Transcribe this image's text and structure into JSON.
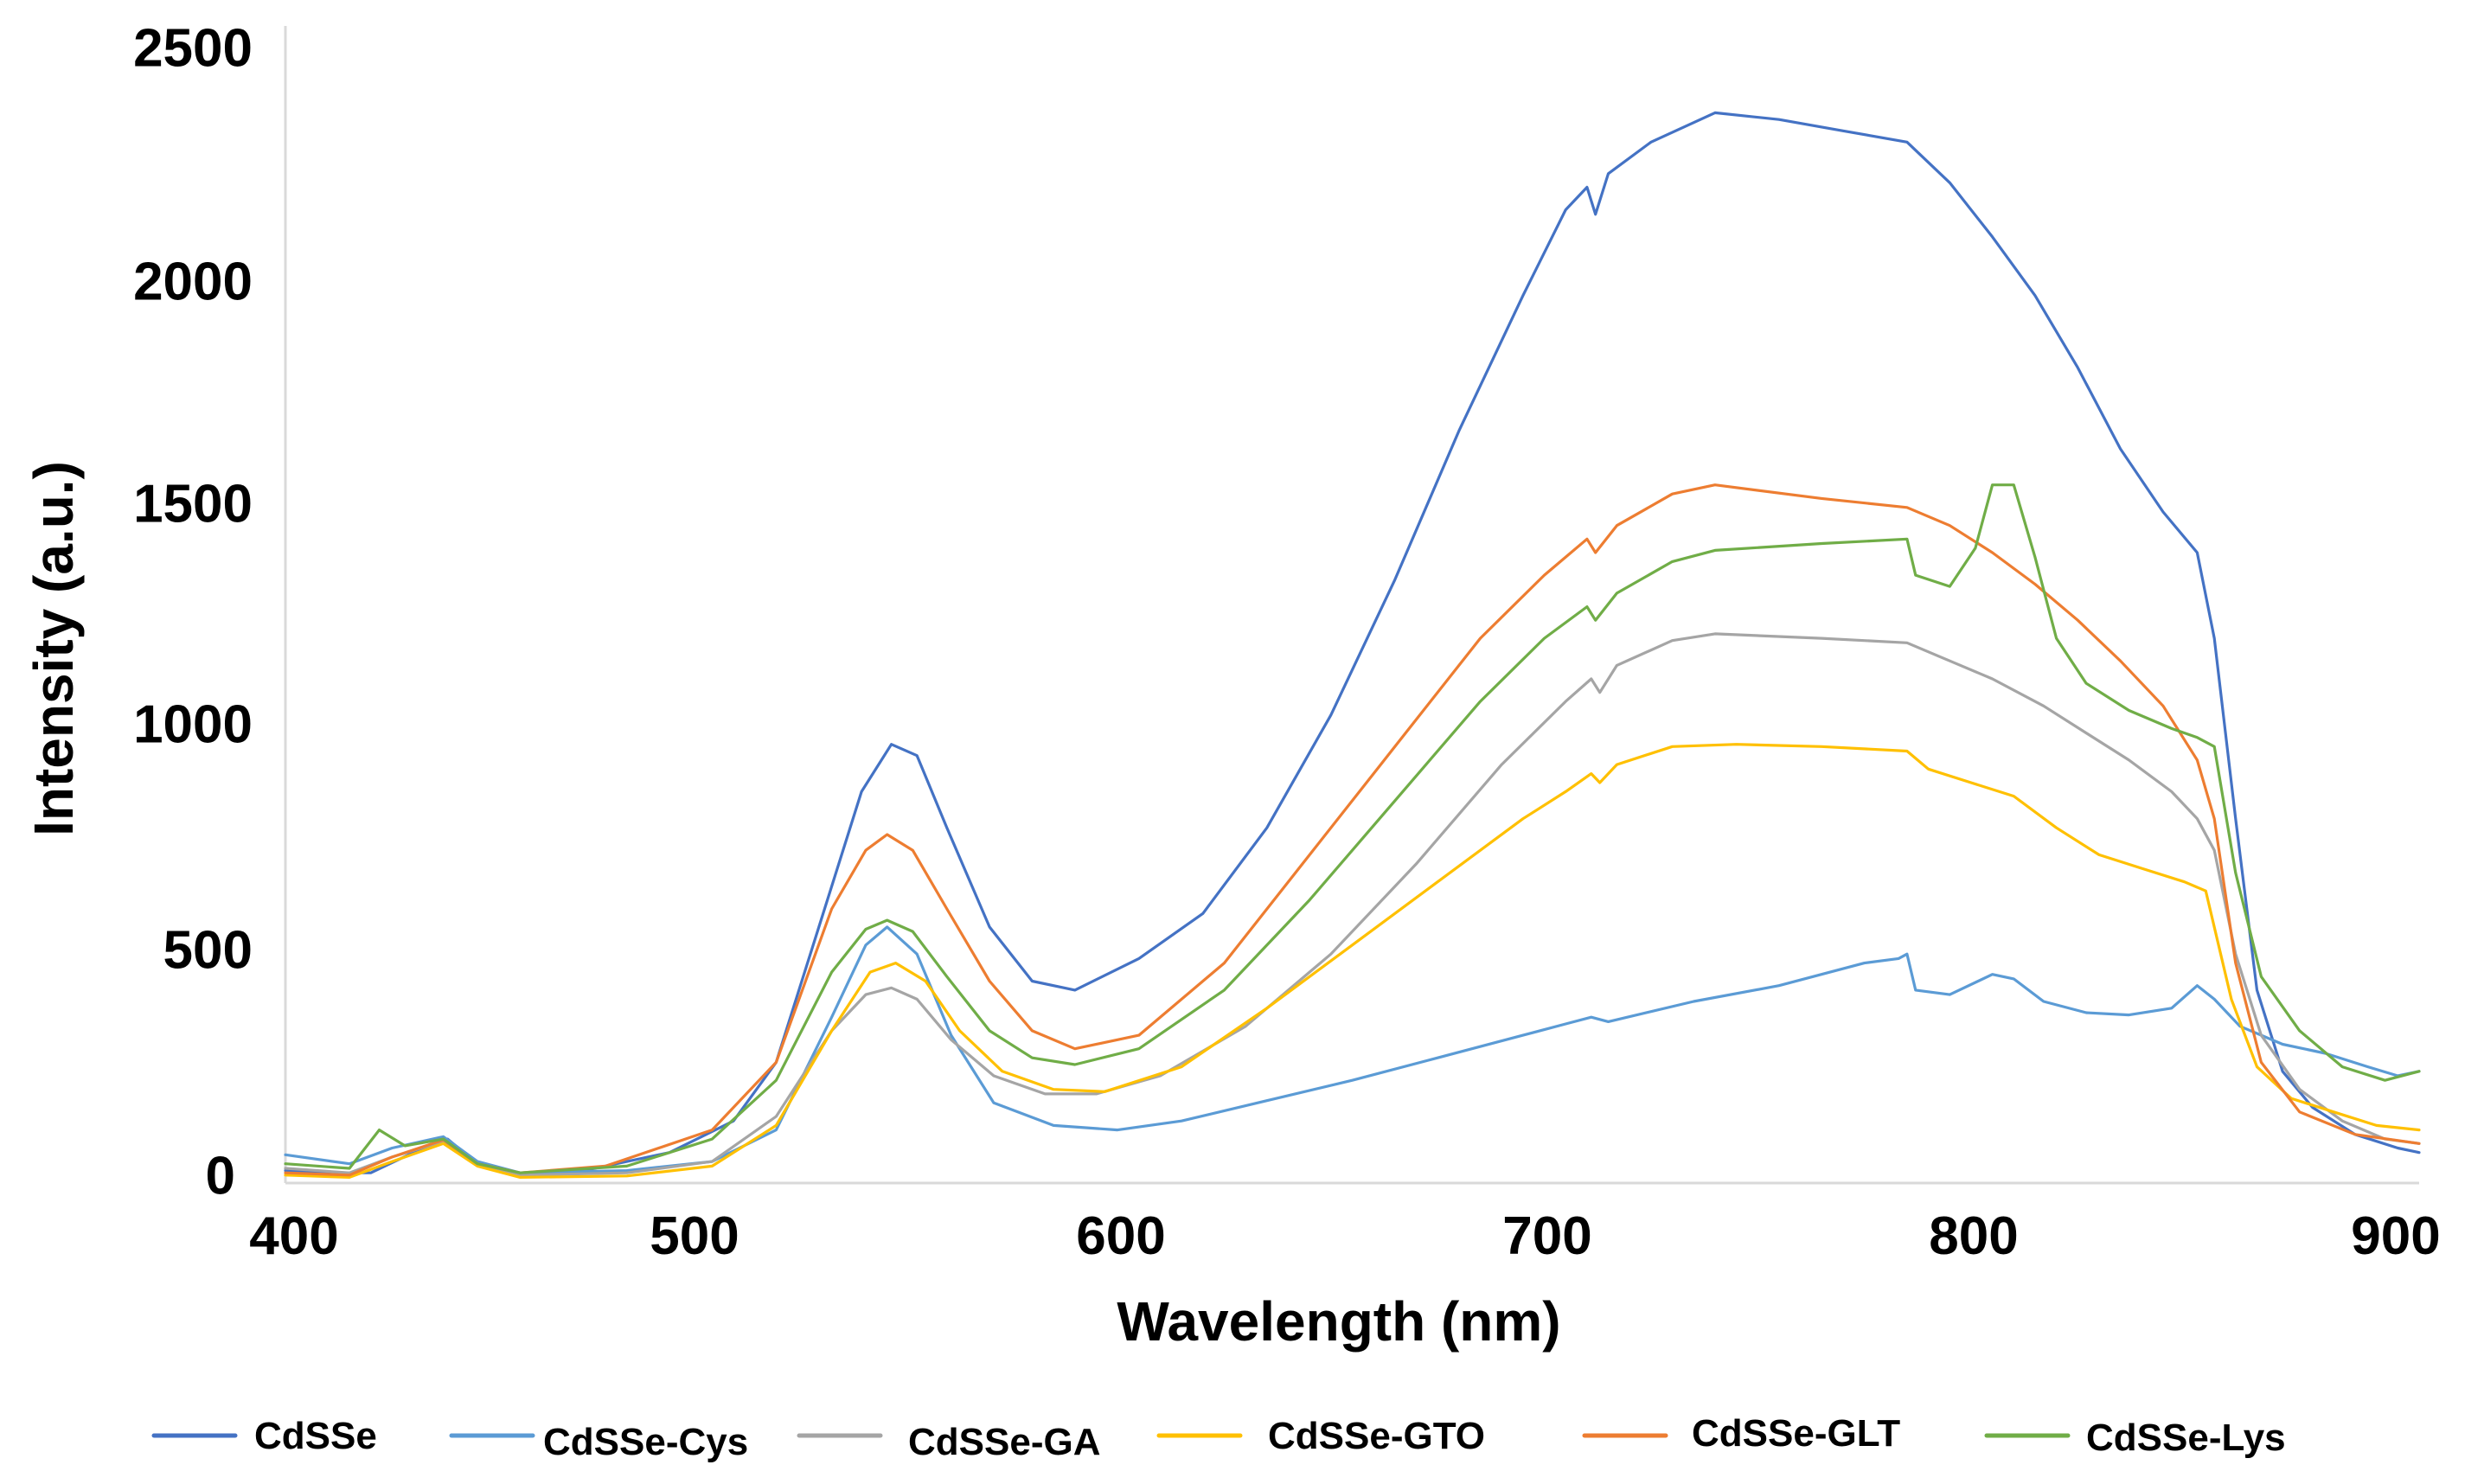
{
  "chart_data": {
    "type": "line",
    "title": "",
    "xlabel": "Wavelength (nm)",
    "ylabel": "Intensity (a.u.)",
    "xlim": [
      400,
      900
    ],
    "ylim": [
      0,
      2500
    ],
    "xticks": [
      400,
      500,
      600,
      700,
      800,
      900
    ],
    "yticks": [
      0,
      500,
      1000,
      1500,
      2000,
      2500
    ],
    "xtick_labels": [
      "400",
      "500",
      "600",
      "700",
      "800",
      "900"
    ],
    "ytick_labels": [
      "0",
      "500",
      "1000",
      "1500",
      "2000",
      "2500"
    ],
    "grid": false,
    "legend_position": "bottom",
    "series": [
      {
        "name": "CdSSe",
        "color": "#4472C4",
        "points": [
          [
            400,
            20
          ],
          [
            410,
            15
          ],
          [
            420,
            15
          ],
          [
            430,
            60
          ],
          [
            438,
            90
          ],
          [
            445,
            35
          ],
          [
            455,
            15
          ],
          [
            470,
            20
          ],
          [
            490,
            60
          ],
          [
            505,
            130
          ],
          [
            515,
            260
          ],
          [
            525,
            560
          ],
          [
            535,
            860
          ],
          [
            542,
            965
          ],
          [
            548,
            940
          ],
          [
            555,
            780
          ],
          [
            565,
            560
          ],
          [
            575,
            440
          ],
          [
            585,
            420
          ],
          [
            600,
            490
          ],
          [
            615,
            590
          ],
          [
            630,
            780
          ],
          [
            645,
            1030
          ],
          [
            660,
            1330
          ],
          [
            675,
            1660
          ],
          [
            690,
            1960
          ],
          [
            700,
            2150
          ],
          [
            705,
            2200
          ],
          [
            707,
            2140
          ],
          [
            710,
            2230
          ],
          [
            720,
            2300
          ],
          [
            735,
            2365
          ],
          [
            750,
            2350
          ],
          [
            765,
            2325
          ],
          [
            780,
            2300
          ],
          [
            790,
            2210
          ],
          [
            800,
            2090
          ],
          [
            810,
            1960
          ],
          [
            820,
            1800
          ],
          [
            830,
            1620
          ],
          [
            840,
            1480
          ],
          [
            848,
            1390
          ],
          [
            852,
            1200
          ],
          [
            857,
            800
          ],
          [
            862,
            420
          ],
          [
            868,
            240
          ],
          [
            875,
            160
          ],
          [
            885,
            100
          ],
          [
            895,
            70
          ],
          [
            900,
            60
          ]
        ]
      },
      {
        "name": "CdSSe-Cys",
        "color": "#5B9BD5",
        "points": [
          [
            400,
            55
          ],
          [
            415,
            35
          ],
          [
            425,
            70
          ],
          [
            437,
            95
          ],
          [
            445,
            40
          ],
          [
            455,
            15
          ],
          [
            480,
            20
          ],
          [
            500,
            40
          ],
          [
            515,
            110
          ],
          [
            528,
            360
          ],
          [
            536,
            520
          ],
          [
            541,
            560
          ],
          [
            548,
            500
          ],
          [
            556,
            320
          ],
          [
            566,
            170
          ],
          [
            580,
            120
          ],
          [
            595,
            110
          ],
          [
            610,
            130
          ],
          [
            630,
            175
          ],
          [
            650,
            220
          ],
          [
            670,
            270
          ],
          [
            690,
            320
          ],
          [
            700,
            345
          ],
          [
            706,
            360
          ],
          [
            710,
            350
          ],
          [
            730,
            395
          ],
          [
            750,
            430
          ],
          [
            770,
            480
          ],
          [
            778,
            490
          ],
          [
            780,
            500
          ],
          [
            782,
            420
          ],
          [
            790,
            410
          ],
          [
            800,
            455
          ],
          [
            805,
            445
          ],
          [
            812,
            395
          ],
          [
            822,
            370
          ],
          [
            832,
            365
          ],
          [
            842,
            380
          ],
          [
            848,
            430
          ],
          [
            852,
            400
          ],
          [
            858,
            340
          ],
          [
            868,
            300
          ],
          [
            878,
            280
          ],
          [
            888,
            250
          ],
          [
            895,
            230
          ],
          [
            900,
            240
          ]
        ]
      },
      {
        "name": "CdSSe-GA",
        "color": "#A5A5A5",
        "points": [
          [
            400,
            25
          ],
          [
            415,
            15
          ],
          [
            425,
            50
          ],
          [
            437,
            85
          ],
          [
            445,
            35
          ],
          [
            455,
            10
          ],
          [
            480,
            15
          ],
          [
            500,
            40
          ],
          [
            515,
            140
          ],
          [
            528,
            330
          ],
          [
            536,
            410
          ],
          [
            542,
            425
          ],
          [
            548,
            400
          ],
          [
            556,
            310
          ],
          [
            566,
            230
          ],
          [
            578,
            190
          ],
          [
            590,
            190
          ],
          [
            605,
            230
          ],
          [
            625,
            340
          ],
          [
            645,
            500
          ],
          [
            665,
            700
          ],
          [
            685,
            920
          ],
          [
            700,
            1060
          ],
          [
            706,
            1110
          ],
          [
            708,
            1080
          ],
          [
            712,
            1140
          ],
          [
            725,
            1195
          ],
          [
            735,
            1210
          ],
          [
            760,
            1200
          ],
          [
            780,
            1190
          ],
          [
            790,
            1150
          ],
          [
            800,
            1110
          ],
          [
            812,
            1050
          ],
          [
            822,
            990
          ],
          [
            832,
            930
          ],
          [
            842,
            860
          ],
          [
            848,
            800
          ],
          [
            852,
            730
          ],
          [
            857,
            500
          ],
          [
            863,
            320
          ],
          [
            872,
            200
          ],
          [
            882,
            130
          ],
          [
            892,
            90
          ],
          [
            900,
            80
          ]
        ]
      },
      {
        "name": "CdSSe-GTO",
        "color": "#FFC000",
        "points": [
          [
            400,
            10
          ],
          [
            415,
            5
          ],
          [
            425,
            40
          ],
          [
            437,
            80
          ],
          [
            445,
            30
          ],
          [
            455,
            5
          ],
          [
            480,
            8
          ],
          [
            500,
            30
          ],
          [
            515,
            120
          ],
          [
            528,
            330
          ],
          [
            537,
            460
          ],
          [
            543,
            480
          ],
          [
            550,
            440
          ],
          [
            558,
            330
          ],
          [
            568,
            240
          ],
          [
            580,
            200
          ],
          [
            592,
            195
          ],
          [
            610,
            250
          ],
          [
            630,
            380
          ],
          [
            650,
            520
          ],
          [
            670,
            660
          ],
          [
            690,
            800
          ],
          [
            700,
            860
          ],
          [
            706,
            900
          ],
          [
            708,
            880
          ],
          [
            712,
            920
          ],
          [
            725,
            960
          ],
          [
            740,
            965
          ],
          [
            760,
            960
          ],
          [
            780,
            950
          ],
          [
            785,
            910
          ],
          [
            795,
            880
          ],
          [
            805,
            850
          ],
          [
            815,
            780
          ],
          [
            825,
            720
          ],
          [
            835,
            690
          ],
          [
            845,
            660
          ],
          [
            850,
            640
          ],
          [
            856,
            400
          ],
          [
            862,
            250
          ],
          [
            870,
            180
          ],
          [
            880,
            150
          ],
          [
            890,
            120
          ],
          [
            900,
            110
          ]
        ]
      },
      {
        "name": "CdSSe-GLT",
        "color": "#ED7D31",
        "points": [
          [
            400,
            15
          ],
          [
            415,
            10
          ],
          [
            425,
            50
          ],
          [
            437,
            88
          ],
          [
            445,
            35
          ],
          [
            455,
            15
          ],
          [
            475,
            30
          ],
          [
            500,
            110
          ],
          [
            515,
            260
          ],
          [
            528,
            600
          ],
          [
            536,
            730
          ],
          [
            541,
            765
          ],
          [
            547,
            730
          ],
          [
            555,
            600
          ],
          [
            565,
            440
          ],
          [
            575,
            330
          ],
          [
            585,
            290
          ],
          [
            600,
            320
          ],
          [
            620,
            480
          ],
          [
            640,
            720
          ],
          [
            660,
            960
          ],
          [
            680,
            1200
          ],
          [
            695,
            1340
          ],
          [
            705,
            1420
          ],
          [
            707,
            1390
          ],
          [
            712,
            1450
          ],
          [
            725,
            1520
          ],
          [
            735,
            1540
          ],
          [
            760,
            1510
          ],
          [
            780,
            1490
          ],
          [
            790,
            1450
          ],
          [
            800,
            1390
          ],
          [
            810,
            1320
          ],
          [
            820,
            1240
          ],
          [
            830,
            1150
          ],
          [
            840,
            1050
          ],
          [
            848,
            930
          ],
          [
            852,
            800
          ],
          [
            857,
            480
          ],
          [
            863,
            260
          ],
          [
            872,
            150
          ],
          [
            885,
            100
          ],
          [
            900,
            80
          ]
        ]
      },
      {
        "name": "CdSSe-Lys",
        "color": "#70AD47",
        "points": [
          [
            400,
            35
          ],
          [
            415,
            25
          ],
          [
            422,
            110
          ],
          [
            428,
            75
          ],
          [
            437,
            90
          ],
          [
            445,
            35
          ],
          [
            455,
            15
          ],
          [
            480,
            30
          ],
          [
            500,
            90
          ],
          [
            515,
            220
          ],
          [
            528,
            460
          ],
          [
            536,
            555
          ],
          [
            541,
            575
          ],
          [
            547,
            550
          ],
          [
            555,
            450
          ],
          [
            565,
            330
          ],
          [
            575,
            270
          ],
          [
            585,
            255
          ],
          [
            600,
            290
          ],
          [
            620,
            420
          ],
          [
            640,
            620
          ],
          [
            660,
            840
          ],
          [
            680,
            1060
          ],
          [
            695,
            1200
          ],
          [
            705,
            1270
          ],
          [
            707,
            1240
          ],
          [
            712,
            1300
          ],
          [
            725,
            1370
          ],
          [
            735,
            1395
          ],
          [
            760,
            1410
          ],
          [
            780,
            1420
          ],
          [
            782,
            1340
          ],
          [
            790,
            1315
          ],
          [
            796,
            1400
          ],
          [
            800,
            1540
          ],
          [
            805,
            1540
          ],
          [
            810,
            1380
          ],
          [
            815,
            1200
          ],
          [
            822,
            1100
          ],
          [
            832,
            1040
          ],
          [
            842,
            1000
          ],
          [
            848,
            980
          ],
          [
            852,
            960
          ],
          [
            857,
            680
          ],
          [
            863,
            450
          ],
          [
            872,
            330
          ],
          [
            882,
            250
          ],
          [
            892,
            220
          ],
          [
            900,
            240
          ]
        ]
      }
    ]
  }
}
